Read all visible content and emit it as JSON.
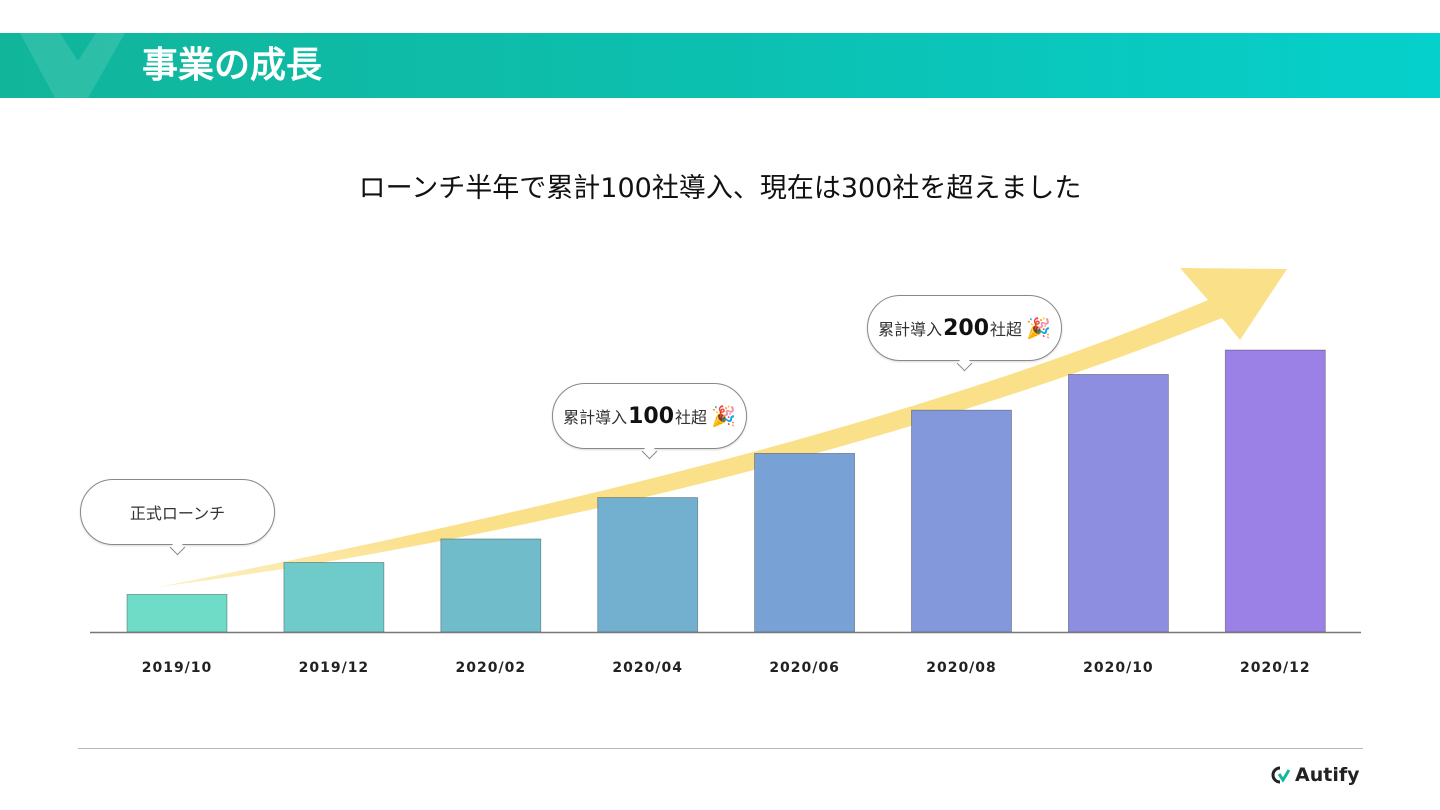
{
  "header": {
    "title": "事業の成長"
  },
  "subtitle": "ローンチ半年で累計100社導入、現在は300社を超えました",
  "callouts": [
    {
      "text": "正式ローンチ",
      "at": "2019/10"
    },
    {
      "prefix": "累計導入",
      "number": "100",
      "suffix": "社超",
      "icon": "party-popper-icon",
      "at": "2020/04"
    },
    {
      "prefix": "累計導入",
      "number": "200",
      "suffix": "社超",
      "icon": "party-popper-icon",
      "at": "2020/08"
    }
  ],
  "chart_data": {
    "type": "bar",
    "categories": [
      "2019/10",
      "2019/12",
      "2020/02",
      "2020/04",
      "2020/06",
      "2020/08",
      "2020/10",
      "2020/12"
    ],
    "values": [
      40,
      74,
      99,
      143,
      190,
      236,
      274,
      300
    ],
    "ylim": [
      0,
      300
    ],
    "grid": false,
    "bar_colors": [
      "#6edcc6",
      "#6ecbc9",
      "#70bccb",
      "#73b0cf",
      "#78a2d5",
      "#8397db",
      "#8d8edf",
      "#9b80e5"
    ],
    "trend_arrow_color": "#fbe08a"
  },
  "footer": {
    "logo": "Autify"
  },
  "colors": {
    "banner_start": "#11b59a",
    "banner_end": "#06d0cc"
  }
}
